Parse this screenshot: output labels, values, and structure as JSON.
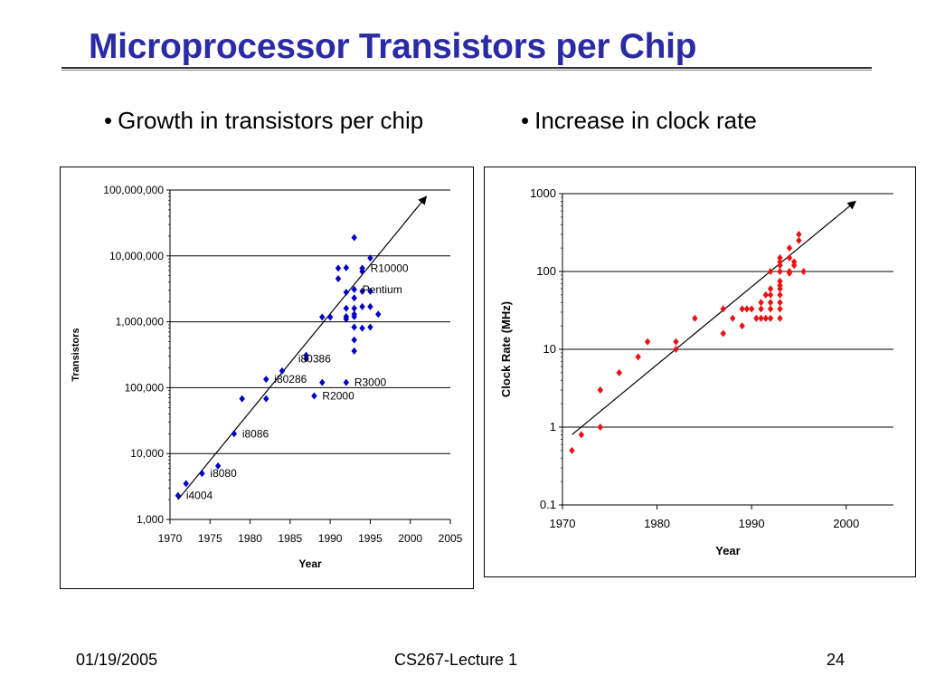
{
  "slide": {
    "title": "Microprocessor Transistors per Chip",
    "bullets": [
      "Growth in transistors per chip",
      "Increase in clock rate"
    ],
    "bullet_glyph": "•",
    "footer": {
      "date": "01/19/2005",
      "course": "CS267-Lecture 1",
      "page": "24"
    },
    "title_color": "#2b2ba6"
  },
  "chart_data": [
    {
      "type": "scatter",
      "ylabel": "Transistors",
      "xlabel": "Year",
      "yscale": "log",
      "xlim": [
        1970,
        2005
      ],
      "ylim": [
        1000,
        100000000
      ],
      "x_ticks": [
        "1970",
        "1975",
        "1980",
        "1985",
        "1990",
        "1995",
        "2000",
        "2005"
      ],
      "y_ticks": [
        {
          "value": 1000,
          "label": "1,000"
        },
        {
          "value": 10000,
          "label": "10,000"
        },
        {
          "value": 100000,
          "label": "100,000"
        },
        {
          "value": 1000000,
          "label": "1,000,000"
        },
        {
          "value": 10000000,
          "label": "10,000,000"
        },
        {
          "value": 100000000,
          "label": "100,000,000"
        }
      ],
      "grid": "horizontal",
      "marker_color": "#0000cc",
      "points": [
        [
          1971,
          2300
        ],
        [
          1972,
          3500
        ],
        [
          1974,
          5000
        ],
        [
          1976,
          6500
        ],
        [
          1978,
          20000
        ],
        [
          1979,
          68000
        ],
        [
          1982,
          68000
        ],
        [
          1982,
          134000
        ],
        [
          1984,
          180000
        ],
        [
          1987,
          275000
        ],
        [
          1987,
          310000
        ],
        [
          1988,
          75000
        ],
        [
          1989,
          120000
        ],
        [
          1989,
          1180000
        ],
        [
          1990,
          1180000
        ],
        [
          1991,
          4500000
        ],
        [
          1991,
          6500000
        ],
        [
          1992,
          6600000
        ],
        [
          1992,
          1200000
        ],
        [
          1992,
          1100000
        ],
        [
          1992,
          2800000
        ],
        [
          1992,
          1600000
        ],
        [
          1992,
          120000
        ],
        [
          1993,
          19000000
        ],
        [
          1993,
          3100000
        ],
        [
          1993,
          2300000
        ],
        [
          1993,
          1300000
        ],
        [
          1993,
          1600000
        ],
        [
          1993,
          1200000
        ],
        [
          1993,
          830000
        ],
        [
          1993,
          530000
        ],
        [
          1993,
          360000
        ],
        [
          1994,
          5800000
        ],
        [
          1994,
          6500000
        ],
        [
          1994,
          2900000
        ],
        [
          1994,
          1700000
        ],
        [
          1994,
          800000
        ],
        [
          1995,
          9300000
        ],
        [
          1995,
          2900000
        ],
        [
          1995,
          830000
        ],
        [
          1995,
          1700000
        ],
        [
          1996,
          1300000
        ]
      ],
      "labels": [
        {
          "text": "i4004",
          "x": 1971,
          "y": 2300
        },
        {
          "text": "i8080",
          "x": 1974,
          "y": 5000
        },
        {
          "text": "i8086",
          "x": 1978,
          "y": 20000
        },
        {
          "text": "i80286",
          "x": 1982,
          "y": 134000
        },
        {
          "text": "i80386",
          "x": 1985,
          "y": 275000
        },
        {
          "text": "R2000",
          "x": 1988,
          "y": 75000
        },
        {
          "text": "R3000",
          "x": 1992,
          "y": 120000
        },
        {
          "text": "Pentium",
          "x": 1993,
          "y": 3100000
        },
        {
          "text": "R10000",
          "x": 1994,
          "y": 6500000
        }
      ],
      "trend": {
        "from": [
          1971,
          2000
        ],
        "to": [
          2002,
          80000000
        ]
      }
    },
    {
      "type": "scatter",
      "ylabel": "Clock Rate (MHz)",
      "xlabel": "Year",
      "yscale": "log",
      "xlim": [
        1970,
        2005
      ],
      "ylim": [
        0.1,
        1000
      ],
      "x_ticks": [
        "1970",
        "1980",
        "1990",
        "2000"
      ],
      "x_tick_values": [
        1970,
        1980,
        1990,
        2000
      ],
      "y_ticks": [
        {
          "value": 0.1,
          "label": "0.1"
        },
        {
          "value": 1,
          "label": "1"
        },
        {
          "value": 10,
          "label": "10"
        },
        {
          "value": 100,
          "label": "100"
        },
        {
          "value": 1000,
          "label": "1000"
        }
      ],
      "grid": "horizontal",
      "marker_color": "#ee1111",
      "points": [
        [
          1971,
          0.5
        ],
        [
          1972,
          0.8
        ],
        [
          1974,
          1
        ],
        [
          1974,
          3
        ],
        [
          1976,
          5
        ],
        [
          1978,
          8
        ],
        [
          1979,
          12.5
        ],
        [
          1982,
          10
        ],
        [
          1982,
          12.5
        ],
        [
          1984,
          25
        ],
        [
          1987,
          16
        ],
        [
          1987,
          33
        ],
        [
          1988,
          25
        ],
        [
          1989,
          20
        ],
        [
          1989,
          33
        ],
        [
          1989.5,
          33
        ],
        [
          1990,
          33
        ],
        [
          1990.5,
          25
        ],
        [
          1991,
          25
        ],
        [
          1991,
          33
        ],
        [
          1991,
          40
        ],
        [
          1991.5,
          25
        ],
        [
          1991.5,
          50
        ],
        [
          1992,
          25
        ],
        [
          1992,
          33
        ],
        [
          1992,
          40
        ],
        [
          1992,
          50
        ],
        [
          1992,
          60
        ],
        [
          1992,
          100
        ],
        [
          1993,
          25
        ],
        [
          1993,
          33
        ],
        [
          1993,
          40
        ],
        [
          1993,
          50
        ],
        [
          1993,
          60
        ],
        [
          1993,
          66
        ],
        [
          1993,
          75
        ],
        [
          1993,
          100
        ],
        [
          1993,
          120
        ],
        [
          1993,
          133
        ],
        [
          1993,
          150
        ],
        [
          1994,
          100
        ],
        [
          1994,
          150
        ],
        [
          1994,
          200
        ],
        [
          1994.5,
          120
        ],
        [
          1994.5,
          133
        ],
        [
          1995,
          250
        ],
        [
          1995,
          300
        ],
        [
          1995.5,
          100
        ],
        [
          1994,
          95
        ]
      ],
      "trend": {
        "from": [
          1971,
          0.8
        ],
        "to": [
          2001,
          800
        ]
      }
    }
  ]
}
